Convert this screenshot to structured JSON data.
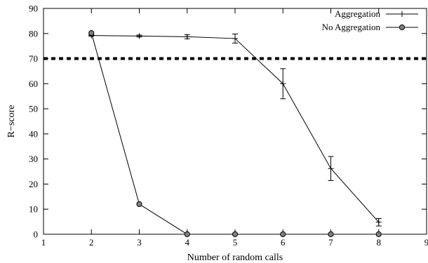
{
  "chart_data": {
    "type": "line",
    "xlabel": "Number of random calls",
    "ylabel": "R−score",
    "xlim": [
      1,
      9
    ],
    "ylim": [
      0,
      90
    ],
    "xticks": [
      "1",
      "2",
      "3",
      "4",
      "5",
      "6",
      "7",
      "8",
      "9"
    ],
    "yticks": [
      "0",
      "10",
      "20",
      "30",
      "40",
      "50",
      "60",
      "70",
      "80",
      "90"
    ],
    "grid": false,
    "legend_position": "top-right",
    "reference_line": {
      "y": 70,
      "style": "dashed",
      "width": "thick"
    },
    "series": [
      {
        "name": "Aggregation",
        "marker": "plus",
        "x": [
          2,
          3,
          4,
          5,
          6,
          7,
          8
        ],
        "y": [
          79.2,
          79.0,
          78.7,
          78.0,
          60.0,
          26.2,
          4.8
        ],
        "error": [
          0.3,
          0.4,
          0.8,
          1.8,
          6.0,
          4.8,
          1.5
        ]
      },
      {
        "name": "No Aggregation",
        "marker": "circle",
        "x": [
          2,
          3,
          4,
          5,
          6,
          7,
          8
        ],
        "y": [
          80.2,
          12.0,
          0,
          0,
          0,
          0,
          0
        ]
      }
    ]
  }
}
